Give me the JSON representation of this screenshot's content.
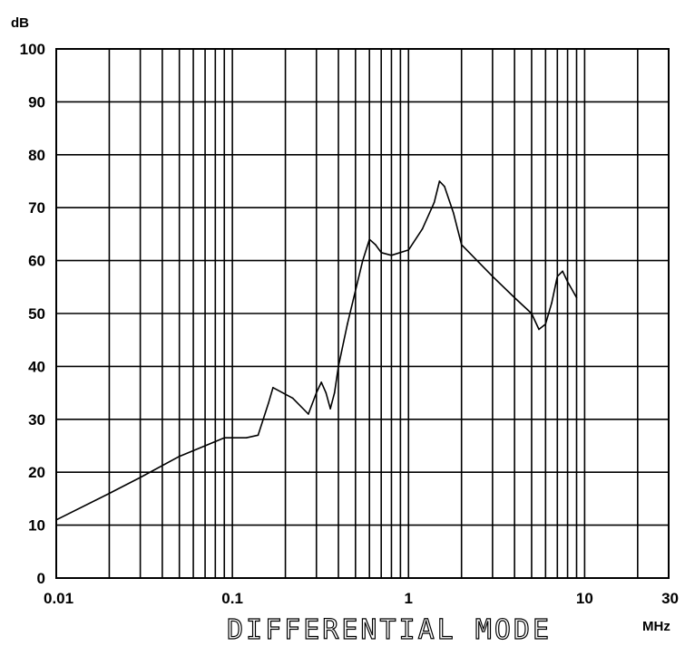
{
  "chart_data": {
    "type": "line",
    "title": "DIFFERENTIAL MODE",
    "ylabel": "dB",
    "xlabel": "MHz",
    "x_scale": "log",
    "xlim": [
      0.01,
      30
    ],
    "ylim": [
      0,
      100
    ],
    "grid": true,
    "x_ticks": [
      0.01,
      0.1,
      1,
      10,
      30
    ],
    "x_tick_labels": [
      "0.01",
      "0.1",
      "1",
      "10",
      "30"
    ],
    "y_ticks": [
      0,
      10,
      20,
      30,
      40,
      50,
      60,
      70,
      80,
      90,
      100
    ],
    "y_tick_labels": [
      "0",
      "10",
      "20",
      "30",
      "40",
      "50",
      "60",
      "70",
      "80",
      "90",
      "100"
    ],
    "series": [
      {
        "x": [
          0.01,
          0.02,
          0.03,
          0.05,
          0.07,
          0.09,
          0.12,
          0.14,
          0.16,
          0.17,
          0.22,
          0.27,
          0.3,
          0.32,
          0.34,
          0.36,
          0.38,
          0.4,
          0.45,
          0.55,
          0.6,
          0.65,
          0.7,
          0.8,
          1.0,
          1.2,
          1.4,
          1.5,
          1.6,
          1.8,
          2.0,
          3.0,
          4.0,
          5.0,
          5.5,
          6.0,
          6.5,
          7.0,
          7.5,
          8.0,
          9.0
        ],
        "y": [
          11,
          16,
          19,
          23,
          25,
          26.5,
          26.5,
          27,
          33,
          36,
          34,
          31,
          35,
          37,
          35,
          32,
          35,
          40,
          48,
          60,
          64,
          63,
          61.5,
          61,
          62,
          66,
          71,
          75,
          74,
          69,
          63,
          57,
          53,
          50,
          47,
          48,
          52,
          57,
          58,
          56,
          53
        ]
      }
    ]
  }
}
